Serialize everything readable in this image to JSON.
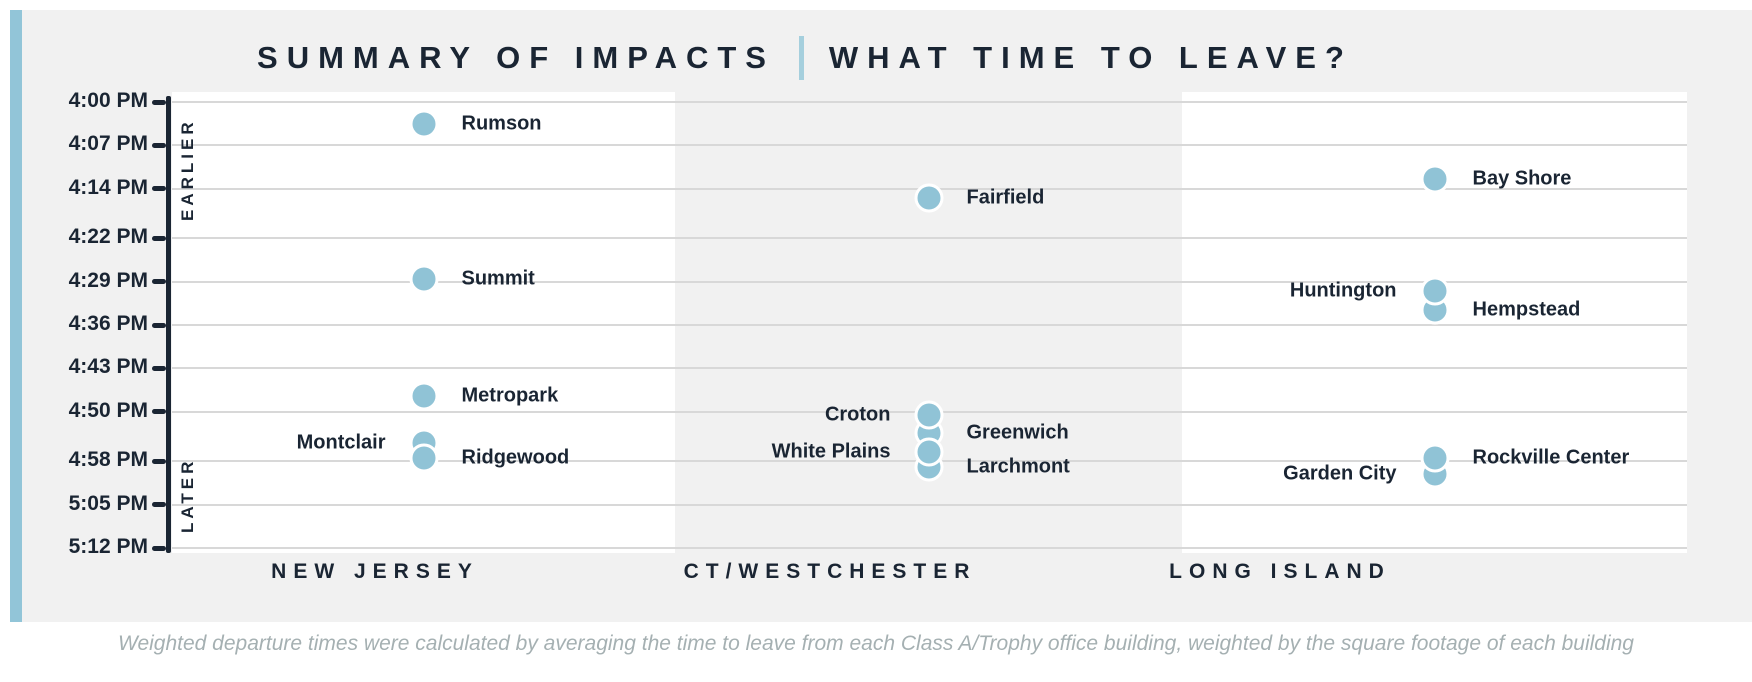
{
  "title": {
    "part1": "SUMMARY OF IMPACTS",
    "divider": "|",
    "part2": "WHAT TIME TO LEAVE?"
  },
  "footer_note": "Weighted departure times were calculated by averaging the time to leave from each Class A/Trophy office building, weighted by the square footage of each building",
  "colors": {
    "navy_text": "#1a2533",
    "dot_blue": "#90c3d6",
    "accent_bar_blue": "#92c5d8",
    "card_background": "#f1f1f1",
    "band_white": "#ffffff",
    "gridline_gray": "#d8d8d8",
    "footer_gray": "#a5b0b2"
  },
  "chart_data": {
    "type": "scatter",
    "title": "SUMMARY OF IMPACTS | WHAT TIME TO LEAVE?",
    "y_axis": {
      "unit": "departure time",
      "direction_labels": {
        "top": "EARLIER",
        "bottom": "LATER"
      },
      "range": [
        "4:00 PM",
        "5:12 PM"
      ],
      "grid": true,
      "ticks": [
        {
          "label": "4:00 PM",
          "minutes_after_4pm": 0
        },
        {
          "label": "4:07 PM",
          "minutes_after_4pm": 7
        },
        {
          "label": "4:14 PM",
          "minutes_after_4pm": 14
        },
        {
          "label": "4:22 PM",
          "minutes_after_4pm": 22
        },
        {
          "label": "4:29 PM",
          "minutes_after_4pm": 29
        },
        {
          "label": "4:36 PM",
          "minutes_after_4pm": 36
        },
        {
          "label": "4:43 PM",
          "minutes_after_4pm": 43
        },
        {
          "label": "4:50 PM",
          "minutes_after_4pm": 50
        },
        {
          "label": "4:58 PM",
          "minutes_after_4pm": 58
        },
        {
          "label": "5:05 PM",
          "minutes_after_4pm": 65
        },
        {
          "label": "5:12 PM",
          "minutes_after_4pm": 72
        }
      ]
    },
    "regions": [
      {
        "label": "NEW JERSEY",
        "band": "white"
      },
      {
        "label": "CT/WESTCHESTER",
        "band": "gray"
      },
      {
        "label": "LONG ISLAND",
        "band": "white"
      }
    ],
    "points": [
      {
        "name": "Rumson",
        "region": "NEW JERSEY",
        "time": "4:04 PM",
        "minutes_after_4pm": 3.5,
        "label_side": "right",
        "z": 1
      },
      {
        "name": "Summit",
        "region": "NEW JERSEY",
        "time": "4:29 PM",
        "minutes_after_4pm": 28.5,
        "label_side": "right",
        "z": 1
      },
      {
        "name": "Metropark",
        "region": "NEW JERSEY",
        "time": "4:48 PM",
        "minutes_after_4pm": 47.5,
        "label_side": "right",
        "z": 1
      },
      {
        "name": "Montclair",
        "region": "NEW JERSEY",
        "time": "4:55 PM",
        "minutes_after_4pm": 55,
        "label_side": "left",
        "z": 1
      },
      {
        "name": "Ridgewood",
        "region": "NEW JERSEY",
        "time": "4:58 PM",
        "minutes_after_4pm": 57.5,
        "label_side": "right",
        "z": 2
      },
      {
        "name": "Fairfield",
        "region": "CT/WESTCHESTER",
        "time": "4:16 PM",
        "minutes_after_4pm": 15.5,
        "label_side": "right",
        "z": 1
      },
      {
        "name": "Croton",
        "region": "CT/WESTCHESTER",
        "time": "4:51 PM",
        "minutes_after_4pm": 50.5,
        "label_side": "left",
        "z": 3
      },
      {
        "name": "Greenwich",
        "region": "CT/WESTCHESTER",
        "time": "4:54 PM",
        "minutes_after_4pm": 53.5,
        "label_side": "right",
        "z": 1
      },
      {
        "name": "White Plains",
        "region": "CT/WESTCHESTER",
        "time": "4:57 PM",
        "minutes_after_4pm": 56.5,
        "label_side": "left",
        "z": 4
      },
      {
        "name": "Larchmont",
        "region": "CT/WESTCHESTER",
        "time": "4:59 PM",
        "minutes_after_4pm": 59,
        "label_side": "right",
        "z": 2
      },
      {
        "name": "Bay Shore",
        "region": "LONG ISLAND",
        "time": "4:13 PM",
        "minutes_after_4pm": 12.5,
        "label_side": "right",
        "z": 1
      },
      {
        "name": "Huntington",
        "region": "LONG ISLAND",
        "time": "4:31 PM",
        "minutes_after_4pm": 30.5,
        "label_side": "left",
        "z": 2
      },
      {
        "name": "Hempstead",
        "region": "LONG ISLAND",
        "time": "4:34 PM",
        "minutes_after_4pm": 33.5,
        "label_side": "right",
        "z": 1
      },
      {
        "name": "Garden City",
        "region": "LONG ISLAND",
        "time": "5:00 PM",
        "minutes_after_4pm": 60,
        "label_side": "left",
        "z": 1
      },
      {
        "name": "Rockville Center",
        "region": "LONG ISLAND",
        "time": "4:58 PM",
        "minutes_after_4pm": 57.5,
        "label_side": "right",
        "z": 2
      }
    ]
  }
}
